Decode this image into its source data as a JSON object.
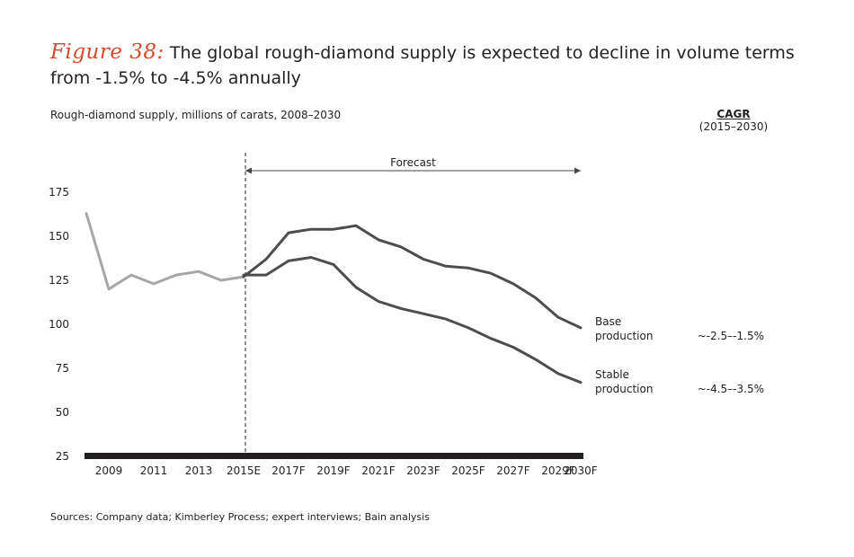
{
  "header": {
    "figure_label": "Figure 38:",
    "title": "The global rough-diamond supply is expected to decline in volume terms from -1.5% to -4.5% annually",
    "subtitle": "Rough-diamond supply, millions of carats, 2008–2030"
  },
  "cagr": {
    "title": "CAGR",
    "period": "(2015–2030)"
  },
  "forecast_label": "Forecast",
  "source": "Sources: Company data; Kimberley Process; expert interviews; Bain analysis",
  "colors": {
    "historical": "#a6a6a6",
    "forecast": "#4d4d4d",
    "axis": "#231f20",
    "title_accent": "#d44a2a"
  },
  "chart_data": {
    "type": "line",
    "x": [
      "2008",
      "2009",
      "2010",
      "2011",
      "2012",
      "2013",
      "2014",
      "2015E",
      "2016F",
      "2017F",
      "2018F",
      "2019F",
      "2020F",
      "2021F",
      "2022F",
      "2023F",
      "2024F",
      "2025F",
      "2026F",
      "2027F",
      "2028F",
      "2029F",
      "2030F"
    ],
    "x_tick_labels": [
      "2009",
      "2011",
      "2013",
      "2015E",
      "2017F",
      "2019F",
      "2021F",
      "2023F",
      "2025F",
      "2027F",
      "2029F",
      "2030F"
    ],
    "y_ticks": [
      25,
      50,
      75,
      100,
      125,
      150,
      175
    ],
    "ylim": [
      25,
      180
    ],
    "forecast_start": "2015E",
    "series": [
      {
        "key": "historical",
        "values": [
          163,
          120,
          128,
          123,
          128,
          130,
          125,
          127,
          null,
          null,
          null,
          null,
          null,
          null,
          null,
          null,
          null,
          null,
          null,
          null,
          null,
          null,
          null
        ]
      },
      {
        "key": "base",
        "name": "Base production",
        "name_lines": [
          "Base",
          "production"
        ],
        "cagr": "~-2.5–-1.5%",
        "values": [
          null,
          null,
          null,
          null,
          null,
          null,
          null,
          127,
          137,
          152,
          154,
          154,
          156,
          148,
          144,
          137,
          133,
          132,
          129,
          123,
          115,
          104,
          98
        ]
      },
      {
        "key": "stable",
        "name": "Stable production",
        "name_lines": [
          "Stable",
          "production"
        ],
        "cagr": "~-4.5–-3.5%",
        "values": [
          null,
          null,
          null,
          null,
          null,
          null,
          null,
          128,
          128,
          136,
          138,
          134,
          121,
          113,
          109,
          106,
          103,
          98,
          92,
          87,
          80,
          72,
          67
        ]
      }
    ]
  }
}
